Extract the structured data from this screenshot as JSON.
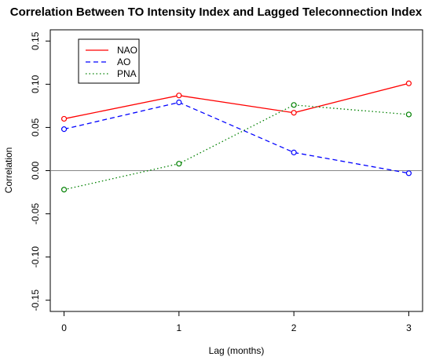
{
  "chart_data": {
    "type": "line",
    "title": "Correlation Between TO Intensity Index and Lagged Teleconnection Index",
    "xlabel": "Lag (months)",
    "ylabel": "Correlation",
    "x": [
      0,
      1,
      2,
      3
    ],
    "xlim": [
      -0.12,
      3.12
    ],
    "ylim": [
      -0.163,
      0.163
    ],
    "xticks": [
      0,
      1,
      2,
      3
    ],
    "xtick_labels": [
      "0",
      "1",
      "2",
      "3"
    ],
    "yticks": [
      -0.15,
      -0.1,
      -0.05,
      0.0,
      0.05,
      0.1,
      0.15
    ],
    "ytick_labels": [
      "-0.15",
      "-0.10",
      "-0.05",
      "0.00",
      "0.05",
      "0.10",
      "0.15"
    ],
    "reference_line_y": 0,
    "reference_line_color": "#888888",
    "grid": false,
    "legend_position": "top-left",
    "series": [
      {
        "name": "NAO",
        "values": [
          0.06,
          0.087,
          0.067,
          0.101
        ],
        "color": "#ff0000",
        "line_style": "solid",
        "marker": "open-circle"
      },
      {
        "name": "AO",
        "values": [
          0.048,
          0.079,
          0.021,
          -0.003
        ],
        "color": "#0000ff",
        "line_style": "dashed",
        "marker": "open-circle"
      },
      {
        "name": "PNA",
        "values": [
          -0.022,
          0.008,
          0.076,
          0.065
        ],
        "color": "#008000",
        "line_style": "dotted",
        "marker": "open-circle"
      }
    ]
  }
}
